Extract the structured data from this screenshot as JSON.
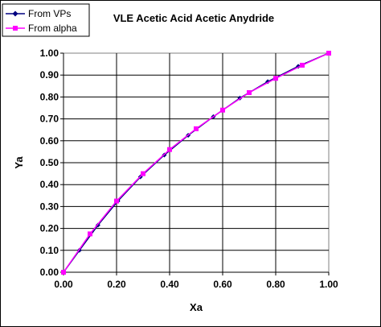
{
  "chart_data": {
    "type": "line",
    "title": "VLE Acetic Acid Acetic Anydride",
    "xlabel": "Xa",
    "ylabel": "Ya",
    "xlim": [
      0,
      1
    ],
    "ylim": [
      0,
      1
    ],
    "xticks": [
      "0.00",
      "0.20",
      "0.40",
      "0.60",
      "0.80",
      "1.00"
    ],
    "yticks": [
      "0.00",
      "0.10",
      "0.20",
      "0.30",
      "0.40",
      "0.50",
      "0.60",
      "0.70",
      "0.80",
      "0.90",
      "1.00"
    ],
    "x_tick_values": [
      0,
      0.2,
      0.4,
      0.6,
      0.8,
      1.0
    ],
    "y_tick_values": [
      0,
      0.1,
      0.2,
      0.3,
      0.4,
      0.5,
      0.6,
      0.7,
      0.8,
      0.9,
      1.0
    ],
    "grid": true,
    "legend_position": "top-left",
    "series": [
      {
        "name": "From VPs",
        "color": "#000080",
        "marker": "diamond",
        "x": [
          0,
          0.06,
          0.13,
          0.205,
          0.29,
          0.38,
          0.47,
          0.565,
          0.665,
          0.77,
          0.885,
          1.0
        ],
        "y": [
          0,
          0.1,
          0.215,
          0.325,
          0.435,
          0.535,
          0.625,
          0.71,
          0.795,
          0.87,
          0.94,
          1.0
        ]
      },
      {
        "name": "From alpha",
        "color": "#FF00FF",
        "marker": "square",
        "x": [
          0,
          0.1,
          0.2,
          0.3,
          0.4,
          0.5,
          0.6,
          0.7,
          0.8,
          0.9,
          1.0
        ],
        "y": [
          0,
          0.175,
          0.325,
          0.45,
          0.56,
          0.655,
          0.74,
          0.82,
          0.885,
          0.945,
          1.0
        ]
      }
    ]
  }
}
